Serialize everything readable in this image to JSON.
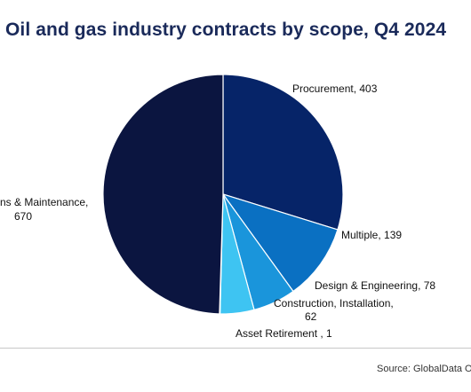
{
  "chart_data": {
    "type": "pie",
    "title": "Oil and gas industry contracts by scope, Q4 2024",
    "source": "Source: GlobalData Oil",
    "slices": [
      {
        "label": "Procurement, 403",
        "value": 403,
        "color": "#062468"
      },
      {
        "label": "Multiple, 139",
        "value": 139,
        "color": "#0a70c2"
      },
      {
        "label": "Design & Engineering, 78",
        "value": 78,
        "color": "#1a95db"
      },
      {
        "label_lines": [
          "Construction, Installation,",
          "62"
        ],
        "value": 62,
        "color": "#3ec4f2"
      },
      {
        "label": "Asset Retirement , 1",
        "value": 1,
        "color": "#7ad8ff"
      },
      {
        "label_lines": [
          "ns & Maintenance,",
          "670"
        ],
        "value": 670,
        "color": "#0b1540"
      }
    ]
  }
}
